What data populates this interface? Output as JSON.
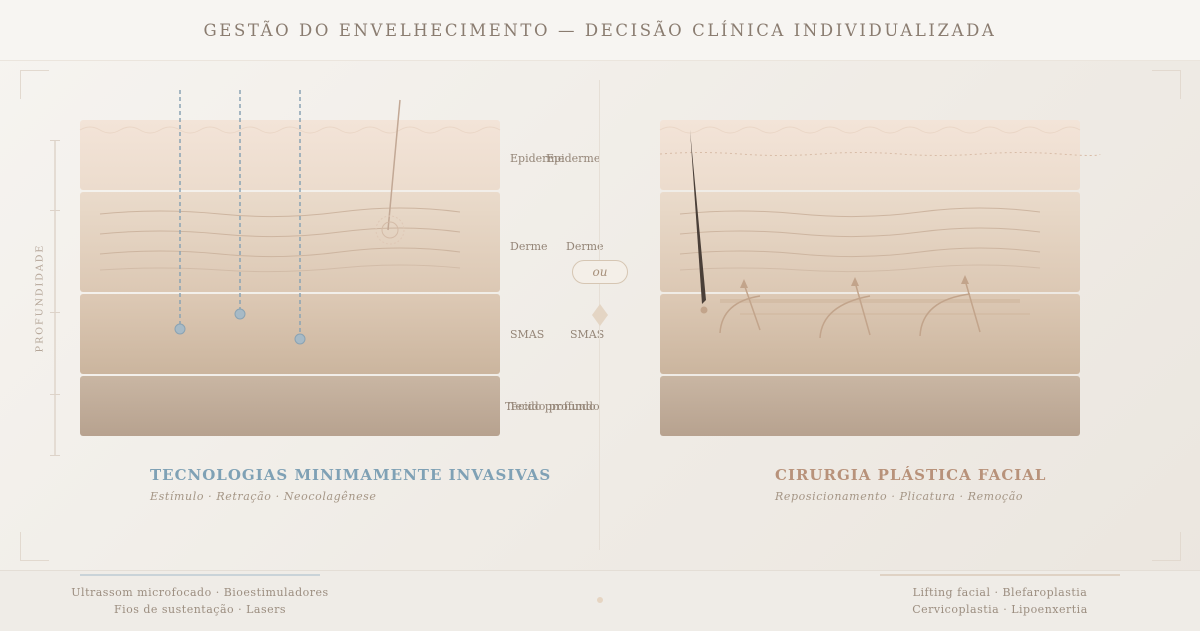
{
  "header": {
    "title": "GESTÃO DO ENVELHECIMENTO — DECISÃO CLÍNICA INDIVIDUALIZADA"
  },
  "axis": {
    "label": "PROFUNDIDADE"
  },
  "layers": {
    "epidermis": "Epiderme",
    "dermis": "Derme",
    "smas": "SMAS",
    "deep": "Tecido profundo"
  },
  "divider": {
    "ou": "ou"
  },
  "left": {
    "heading": "TECNOLOGIAS MINIMAMENTE INVASIVAS",
    "subtitle": "Estímulo · Retração · Neocolagênese",
    "accent": "#7fa1b5",
    "footer_line1": "Ultrassom microfocado · Bioestimuladores",
    "footer_line2": "Fios de sustentação · Lasers"
  },
  "right": {
    "heading": "CIRURGIA PLÁSTICA FACIAL",
    "subtitle": "Reposicionamento · Plicatura · Remoção",
    "accent": "#b8927a",
    "footer_line1": "Lifting facial · Blefaroplastia",
    "footer_line2": "Cervicoplastia · Lipoenxertia"
  },
  "icons": [
    "ultrasound-probe-icon",
    "scalpel-icon",
    "lift-arrow-icon",
    "divider-diamond-icon"
  ]
}
